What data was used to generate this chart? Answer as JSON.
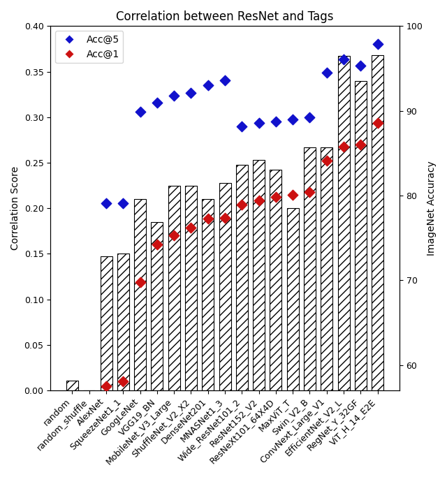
{
  "title": "Correlation between ResNet and Tags",
  "ylabel_left": "Correlation Score",
  "ylabel_right": "ImageNet Accuracy",
  "categories": [
    "random",
    "random_shuffle",
    "AlexNet",
    "SqueezeNet1_1",
    "GoogLeNet",
    "VGG19_BN",
    "MobileNet_V3_Large",
    "ShuffleNet_V2_X2",
    "DenseNet201",
    "MNASNet1_3",
    "Wide_ResNet101_2",
    "ResNet152_V2",
    "ResNeXt101_64X4D",
    "MaxViT_T",
    "Swin_V2_B",
    "ConvNext_Large_V1",
    "EfficientNet_V2_L",
    "RegNet_Y_32GF",
    "ViT_H_14_E2E"
  ],
  "bar_values": [
    0.011,
    0.0,
    0.147,
    0.15,
    0.21,
    0.185,
    0.225,
    0.225,
    0.21,
    0.228,
    0.248,
    0.253,
    0.242,
    0.2,
    0.267,
    0.267,
    0.367,
    0.34,
    0.368
  ],
  "acc5_imagenet": [
    null,
    null,
    79.1,
    79.1,
    89.9,
    91.0,
    91.8,
    92.1,
    93.0,
    93.6,
    88.2,
    88.6,
    88.7,
    89.0,
    89.2,
    94.5,
    96.1,
    95.3,
    97.9
  ],
  "acc1_imagenet": [
    null,
    null,
    57.5,
    58.1,
    69.8,
    74.2,
    75.3,
    76.2,
    77.3,
    77.4,
    78.9,
    79.4,
    79.8,
    80.1,
    80.4,
    84.1,
    85.8,
    86.0,
    88.6
  ],
  "bar_color": "#ffffff",
  "bar_edgecolor": "#000000",
  "bar_hatch": "///",
  "acc5_color": "#1111cc",
  "acc1_color": "#cc1111",
  "ylim_left": [
    0.0,
    0.4
  ],
  "ylim_right": [
    57,
    100
  ],
  "yticks_right": [
    60,
    70,
    80,
    90,
    100
  ],
  "legend_loc": "upper left",
  "title_fontsize": 12,
  "label_fontsize": 10,
  "tick_fontsize": 9,
  "figsize": [
    6.4,
    6.83
  ],
  "dpi": 100
}
